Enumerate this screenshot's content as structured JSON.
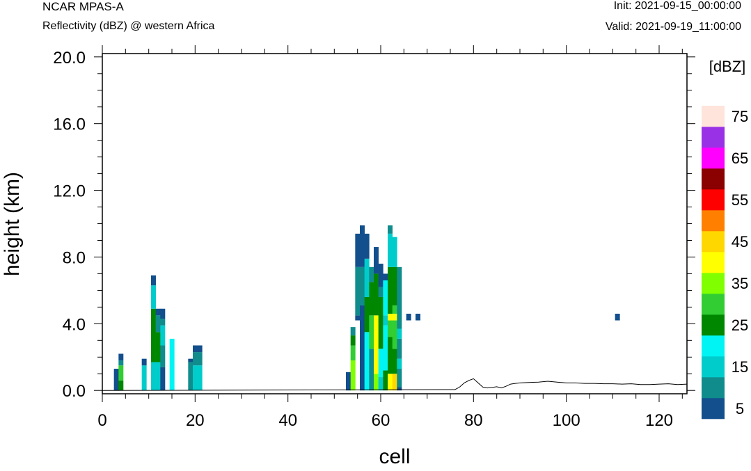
{
  "header": {
    "model": "NCAR MPAS-A",
    "field": "Reflectivity (dBZ) @ western Africa",
    "init": "Init: 2021-09-15_00:00:00",
    "valid": "Valid: 2021-09-19_11:00:00"
  },
  "chart_data": {
    "type": "heatmap",
    "xlabel": "cell",
    "ylabel": "height (km)",
    "xlim": [
      0,
      126
    ],
    "ylim": [
      -0.2,
      20.2
    ],
    "x_ticks": [
      0,
      20,
      40,
      60,
      80,
      100,
      120
    ],
    "y_ticks": [
      0.0,
      4.0,
      8.0,
      12.0,
      16.0,
      20.0
    ],
    "x_tick_labels": [
      "0",
      "20",
      "40",
      "60",
      "80",
      "100",
      "120"
    ],
    "y_tick_labels": [
      "0.0",
      "4.0",
      "8.0",
      "12.0",
      "16.0",
      "20.0"
    ],
    "colorbar": {
      "unit": "[dBZ]",
      "bins": [
        {
          "value": 5,
          "color": "#124f8c"
        },
        {
          "value": 10,
          "color": "#108c8c"
        },
        {
          "value": 15,
          "color": "#00cccc"
        },
        {
          "value": 20,
          "color": "#00f4f4"
        },
        {
          "value": 25,
          "color": "#008700"
        },
        {
          "value": 30,
          "color": "#32cd32"
        },
        {
          "value": 35,
          "color": "#7fff00"
        },
        {
          "value": 40,
          "color": "#ffff00"
        },
        {
          "value": 45,
          "color": "#ffd700"
        },
        {
          "value": 50,
          "color": "#ff8000"
        },
        {
          "value": 55,
          "color": "#ff0000"
        },
        {
          "value": 60,
          "color": "#8b0000"
        },
        {
          "value": 65,
          "color": "#ff00ff"
        },
        {
          "value": 70,
          "color": "#9932e6"
        },
        {
          "value": 75,
          "color": "#ffe4dc"
        }
      ],
      "labels": [
        "5",
        "15",
        "25",
        "35",
        "45",
        "55",
        "65",
        "75"
      ]
    },
    "cell_height_km": 0.5,
    "columns": [
      {
        "x": 3,
        "segs": [
          [
            0,
            1.3,
            5
          ]
        ]
      },
      {
        "x": 4,
        "segs": [
          [
            0,
            0.6,
            25
          ],
          [
            0.6,
            1.5,
            30
          ],
          [
            1.5,
            1.8,
            10
          ],
          [
            1.8,
            2.2,
            5
          ]
        ]
      },
      {
        "x": 9,
        "segs": [
          [
            0,
            1.5,
            15
          ],
          [
            1.5,
            1.9,
            5
          ]
        ]
      },
      {
        "x": 11,
        "segs": [
          [
            0,
            1.7,
            15
          ],
          [
            1.7,
            4.9,
            25
          ],
          [
            4.9,
            6.3,
            15
          ],
          [
            6.3,
            6.9,
            5
          ]
        ]
      },
      {
        "x": 12,
        "segs": [
          [
            0,
            1.7,
            15
          ],
          [
            1.7,
            3.5,
            25
          ],
          [
            3.5,
            4.5,
            10
          ],
          [
            4.5,
            4.9,
            5
          ]
        ]
      },
      {
        "x": 13,
        "segs": [
          [
            0,
            1.4,
            5
          ],
          [
            1.4,
            2.7,
            10
          ],
          [
            2.7,
            3.9,
            15
          ],
          [
            3.9,
            4.3,
            10
          ],
          [
            4.3,
            4.9,
            5
          ]
        ]
      },
      {
        "x": 15,
        "segs": [
          [
            0,
            3.1,
            20
          ]
        ]
      },
      {
        "x": 19,
        "segs": [
          [
            0,
            1.7,
            10
          ],
          [
            1.7,
            1.9,
            5
          ]
        ]
      },
      {
        "x": 20,
        "segs": [
          [
            0,
            1.5,
            15
          ],
          [
            1.5,
            2.3,
            10
          ],
          [
            2.3,
            2.7,
            5
          ]
        ]
      },
      {
        "x": 21,
        "segs": [
          [
            0,
            1.5,
            15
          ],
          [
            1.5,
            2.3,
            10
          ],
          [
            2.3,
            2.7,
            5
          ]
        ]
      },
      {
        "x": 53,
        "segs": [
          [
            0,
            1.1,
            5
          ]
        ]
      },
      {
        "x": 54,
        "segs": [
          [
            0,
            1.8,
            35
          ],
          [
            1.8,
            2.7,
            30
          ],
          [
            2.7,
            3.3,
            25
          ],
          [
            3.3,
            3.8,
            10
          ]
        ]
      },
      {
        "x": 55,
        "segs": [
          [
            4.2,
            4.5,
            5
          ],
          [
            4.5,
            7.4,
            10
          ],
          [
            7.4,
            9.4,
            5
          ]
        ]
      },
      {
        "x": 56,
        "segs": [
          [
            0,
            5.1,
            5
          ],
          [
            5.1,
            7.4,
            10
          ],
          [
            7.4,
            9.9,
            5
          ]
        ]
      },
      {
        "x": 57,
        "segs": [
          [
            0,
            3.5,
            20
          ],
          [
            3.5,
            5.6,
            25
          ],
          [
            5.6,
            7.9,
            15
          ],
          [
            7.9,
            9.4,
            5
          ]
        ]
      },
      {
        "x": 58,
        "segs": [
          [
            0,
            2.5,
            10
          ],
          [
            2.5,
            4.5,
            30
          ],
          [
            4.5,
            6.5,
            25
          ],
          [
            6.5,
            7.4,
            10
          ]
        ]
      },
      {
        "x": 59,
        "segs": [
          [
            0,
            1.0,
            35
          ],
          [
            1.0,
            4.5,
            40
          ],
          [
            4.5,
            7.0,
            25
          ],
          [
            7.0,
            8.6,
            5
          ]
        ]
      },
      {
        "x": 60,
        "segs": [
          [
            0,
            0.8,
            15
          ],
          [
            0.8,
            2.5,
            20
          ],
          [
            2.5,
            5.6,
            25
          ],
          [
            5.6,
            6.2,
            10
          ],
          [
            6.2,
            7.6,
            5
          ]
        ]
      },
      {
        "x": 61,
        "segs": [
          [
            0,
            1.2,
            25
          ],
          [
            1.2,
            3.9,
            20
          ],
          [
            3.9,
            4.5,
            15
          ],
          [
            4.5,
            6.6,
            20
          ],
          [
            6.6,
            7.0,
            5
          ]
        ]
      },
      {
        "x": 62,
        "segs": [
          [
            0,
            1.0,
            40
          ],
          [
            1.0,
            3.2,
            25
          ],
          [
            3.2,
            4.2,
            30
          ],
          [
            4.2,
            4.6,
            40
          ],
          [
            4.6,
            7.4,
            25
          ],
          [
            7.4,
            9.4,
            15
          ],
          [
            9.4,
            9.9,
            10
          ]
        ]
      },
      {
        "x": 63,
        "segs": [
          [
            0,
            1.0,
            45
          ],
          [
            1.0,
            2.5,
            25
          ],
          [
            2.5,
            4.2,
            30
          ],
          [
            4.2,
            4.6,
            40
          ],
          [
            4.6,
            5.1,
            30
          ],
          [
            5.1,
            7.4,
            25
          ],
          [
            7.4,
            9.2,
            15
          ]
        ]
      },
      {
        "x": 64,
        "segs": [
          [
            0,
            0.2,
            5
          ],
          [
            0.2,
            1.3,
            10
          ],
          [
            1.3,
            1.9,
            15
          ],
          [
            1.9,
            3.1,
            10
          ],
          [
            3.1,
            3.7,
            15
          ],
          [
            3.7,
            7.4,
            10
          ]
        ]
      },
      {
        "x": 66,
        "segs": [
          [
            4.2,
            4.6,
            5
          ]
        ]
      },
      {
        "x": 68,
        "segs": [
          [
            4.2,
            4.6,
            5
          ]
        ]
      },
      {
        "x": 111,
        "segs": [
          [
            4.2,
            4.6,
            5
          ]
        ]
      }
    ],
    "terrain": {
      "x": [
        0,
        76,
        77,
        78,
        79,
        80,
        81,
        82,
        83,
        84,
        85,
        86,
        87,
        88,
        89,
        90,
        92,
        94,
        96,
        98,
        100,
        102,
        104,
        106,
        108,
        110,
        112,
        114,
        116,
        118,
        120,
        122,
        124,
        126
      ],
      "y": [
        0.0,
        0.05,
        0.2,
        0.45,
        0.6,
        0.7,
        0.45,
        0.2,
        0.15,
        0.18,
        0.22,
        0.15,
        0.25,
        0.38,
        0.42,
        0.45,
        0.48,
        0.5,
        0.55,
        0.5,
        0.45,
        0.45,
        0.42,
        0.42,
        0.4,
        0.4,
        0.38,
        0.4,
        0.35,
        0.35,
        0.38,
        0.4,
        0.35,
        0.38
      ]
    }
  }
}
